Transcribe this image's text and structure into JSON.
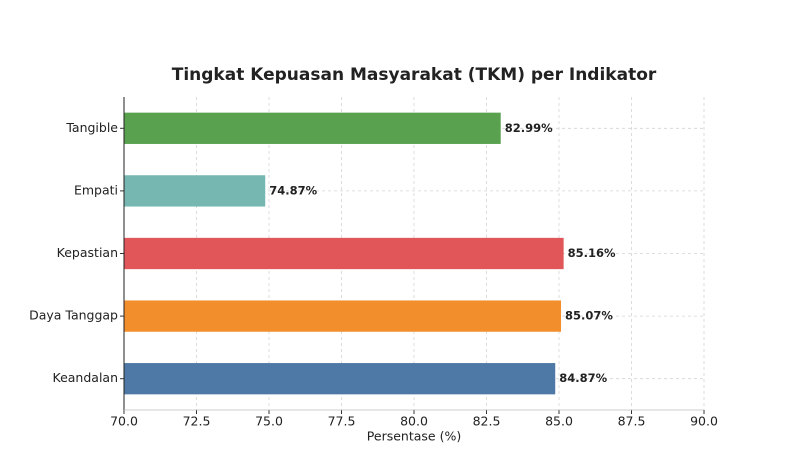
{
  "chart_data": {
    "type": "barh",
    "title": "Tingkat Kepuasan Masyarakat (TKM) per Indikator",
    "x_label": "Persentase (%)",
    "categories": [
      "Tangible",
      "Empati",
      "Kepastian",
      "Daya Tanggap",
      "Keandalan"
    ],
    "values": [
      82.99,
      74.87,
      85.16,
      85.07,
      84.87
    ],
    "value_labels": [
      "82.99%",
      "74.87%",
      "85.16%",
      "85.07%",
      "84.87%"
    ],
    "colors": [
      "#59a14f",
      "#76b7b2",
      "#e15759",
      "#f28e2b",
      "#4e79a7"
    ],
    "xlim": [
      70,
      90
    ],
    "xticks": [
      {
        "value": 70,
        "label": "70.0"
      },
      72.5,
      {
        "value": 75,
        "label": "75.0"
      },
      77.5,
      {
        "value": 80,
        "label": "80.0"
      },
      82.5,
      {
        "value": 85,
        "label": "85.0"
      },
      87.5,
      {
        "value": 90,
        "label": "90.0"
      }
    ],
    "grid": true
  }
}
